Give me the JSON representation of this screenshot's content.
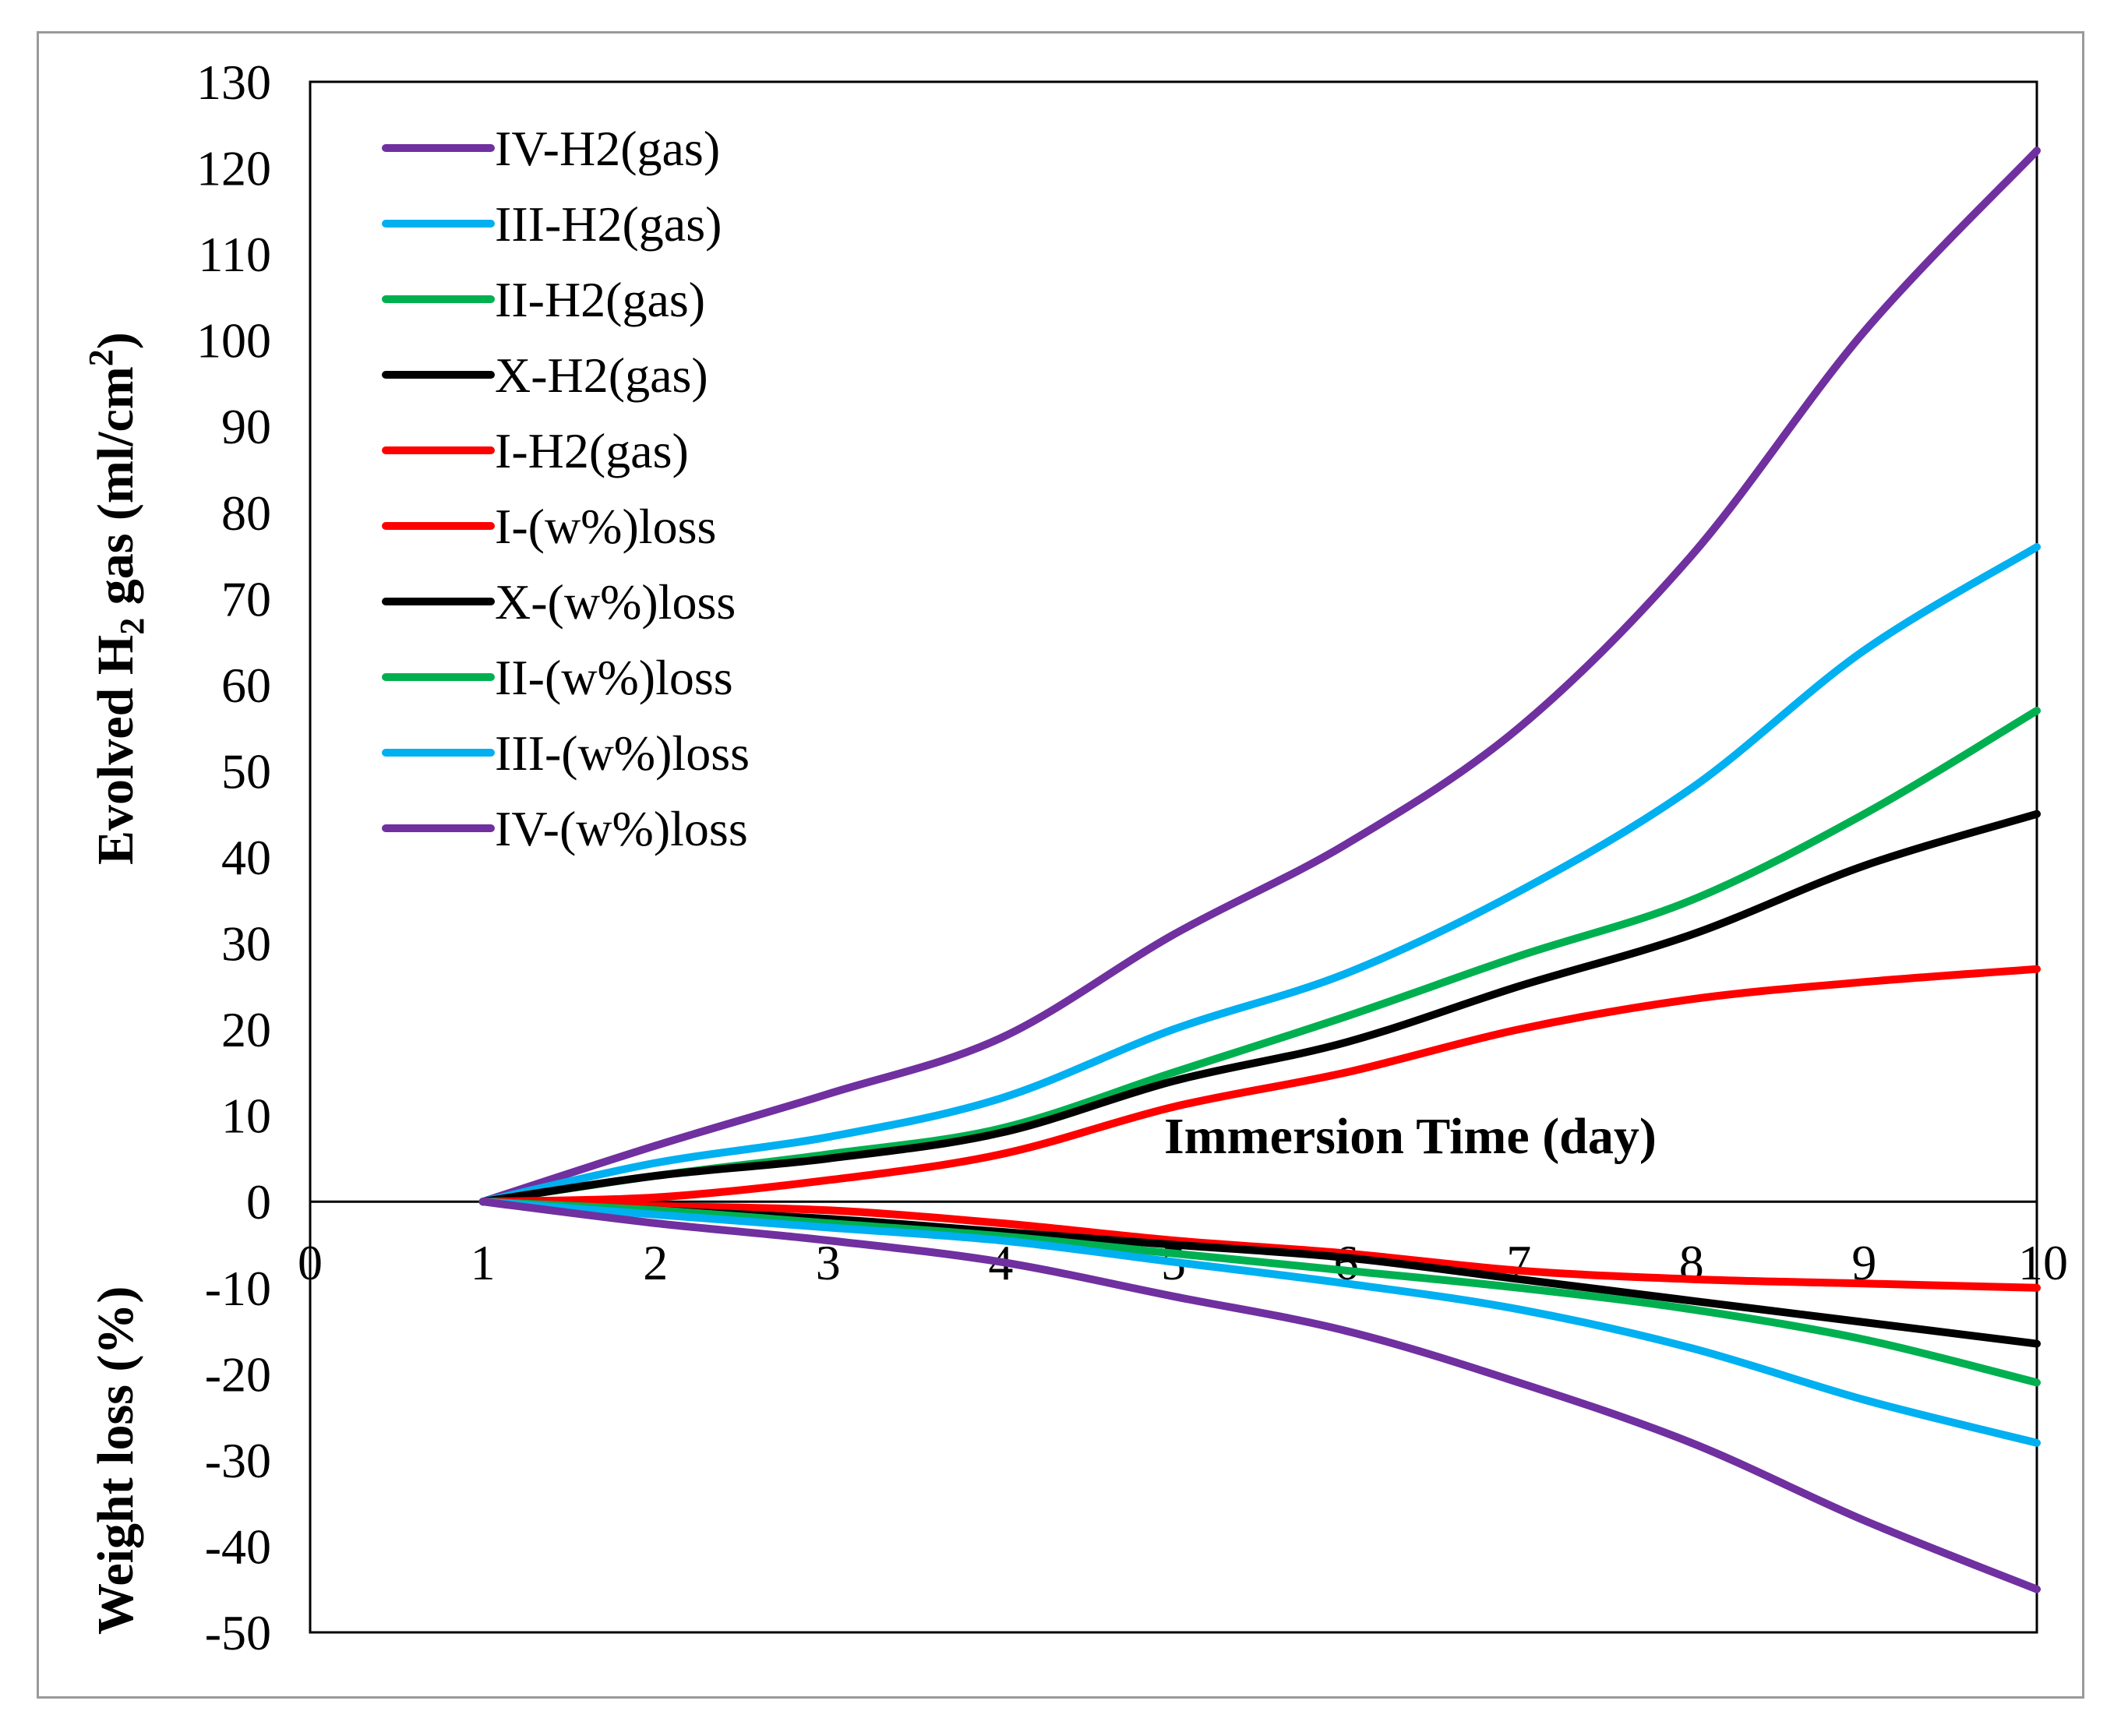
{
  "chart_data": {
    "type": "line",
    "title": "",
    "xlabel": "Immersion Time (day)",
    "ylabel_top": {
      "prefix": "Evolved H",
      "sub": "2",
      "mid": " gas (ml/cm",
      "sup": "2",
      "suffix": ")"
    },
    "ylabel_bottom": "Weight  loss (%)",
    "xlim": [
      0,
      10
    ],
    "ylim": [
      -50,
      130
    ],
    "xticks": [
      "0",
      "1",
      "2",
      "3",
      "4",
      "5",
      "6",
      "7",
      "8",
      "9",
      "10"
    ],
    "yticks": [
      "130",
      "120",
      "110",
      "100",
      "90",
      "80",
      "70",
      "60",
      "50",
      "40",
      "30",
      "20",
      "10",
      "0",
      "-10",
      "-20",
      "-30",
      "-40",
      "-50"
    ],
    "grid": false,
    "legend_position": "top-left",
    "x": [
      1,
      2,
      3,
      4,
      5,
      6,
      7,
      8,
      9,
      10
    ],
    "series": [
      {
        "name": "IV-H2(gas)",
        "color": "#7030A0",
        "values": [
          0,
          6.5,
          12.5,
          19,
          31,
          41.5,
          55,
          75,
          101,
          122
        ]
      },
      {
        "name": "III-H2(gas)",
        "color": "#00B0F0",
        "values": [
          0,
          4.5,
          7.5,
          12,
          20,
          26.5,
          36,
          48,
          64,
          76
        ]
      },
      {
        "name": "II-H2(gas)",
        "color": "#00B050",
        "values": [
          0,
          3,
          5.5,
          8.5,
          15,
          21.5,
          28.5,
          35,
          45,
          57
        ]
      },
      {
        "name": "X-H2(gas)",
        "color": "#000000",
        "values": [
          0,
          3,
          5,
          8,
          14,
          18.5,
          25,
          31,
          39,
          45
        ]
      },
      {
        "name": "I-H2(gas)",
        "color": "#FF0000",
        "values": [
          0,
          0.5,
          2.5,
          5.5,
          11,
          15,
          20,
          23.5,
          25.5,
          27
        ]
      },
      {
        "name": "I-(w%)loss",
        "color": "#FF0000",
        "values": [
          0,
          -0.5,
          -1,
          -2.5,
          -4.5,
          -6,
          -8,
          -9,
          -9.5,
          -10
        ]
      },
      {
        "name": "X-(w%)loss",
        "color": "#000000",
        "values": [
          0,
          -1,
          -2,
          -3.5,
          -5,
          -6.5,
          -9,
          -11.5,
          -14,
          -16.5
        ]
      },
      {
        "name": "II-(w%)loss",
        "color": "#00B050",
        "values": [
          0,
          -1,
          -2.5,
          -4,
          -6,
          -8,
          -10,
          -12.5,
          -16,
          -21
        ]
      },
      {
        "name": "III-(w%)loss",
        "color": "#00B0F0",
        "values": [
          0,
          -1.5,
          -3,
          -4.5,
          -7,
          -9.5,
          -12.5,
          -17,
          -23,
          -28
        ]
      },
      {
        "name": "IV-(w%)loss",
        "color": "#7030A0",
        "values": [
          0,
          -2.5,
          -4.5,
          -7,
          -11,
          -15,
          -21,
          -28,
          -37,
          -45
        ]
      }
    ]
  }
}
